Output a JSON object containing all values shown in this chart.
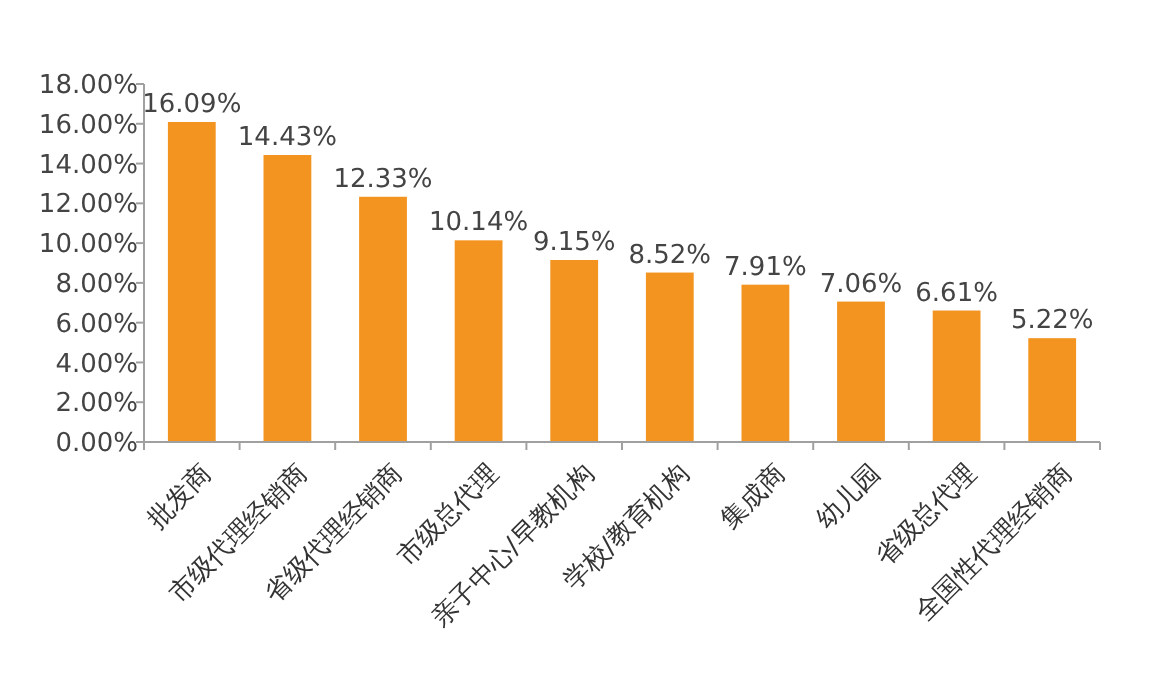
{
  "chart_data": {
    "type": "bar",
    "categories": [
      "批发商",
      "市级代理经销商",
      "省级代理经销商",
      "市级总代理",
      "亲子中心/早教机构",
      "学校/教育机构",
      "集成商",
      "幼儿园",
      "省级总代理",
      "全国性代理经销商"
    ],
    "values": [
      16.09,
      14.43,
      12.33,
      10.14,
      9.15,
      8.52,
      7.91,
      7.06,
      6.61,
      5.22
    ],
    "value_labels": [
      "16.09%",
      "14.43%",
      "12.33%",
      "10.14%",
      "9.15%",
      "8.52%",
      "7.91%",
      "7.06%",
      "6.61%",
      "5.22%"
    ],
    "color": "#f39320",
    "ylim": [
      0,
      18
    ],
    "yticks": [
      {
        "value": 0,
        "label": "0.00%"
      },
      {
        "value": 2,
        "label": "2.00%"
      },
      {
        "value": 4,
        "label": "4.00%"
      },
      {
        "value": 6,
        "label": "6.00%"
      },
      {
        "value": 8,
        "label": "8.00%"
      },
      {
        "value": 10,
        "label": "10.00%"
      },
      {
        "value": 12,
        "label": "12.00%"
      },
      {
        "value": 14,
        "label": "14.00%"
      },
      {
        "value": 16,
        "label": "16.00%"
      },
      {
        "value": 18,
        "label": "18.00%"
      }
    ],
    "grid": false
  }
}
